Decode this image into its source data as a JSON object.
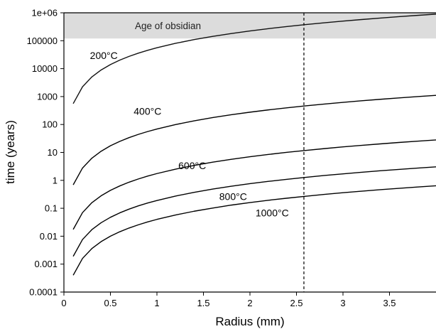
{
  "chart_data": {
    "type": "line",
    "title": "",
    "xlabel": "Radius (mm)",
    "ylabel": "time (years)",
    "xlim": [
      0,
      4
    ],
    "ylim": [
      0.0001,
      1000000
    ],
    "y_scale": "log",
    "grid": false,
    "legend": "none",
    "x_ticks": [
      {
        "value": 0,
        "label": "0"
      },
      {
        "value": 0.5,
        "label": "0.5"
      },
      {
        "value": 1,
        "label": "1"
      },
      {
        "value": 1.5,
        "label": "1.5"
      },
      {
        "value": 2,
        "label": "2"
      },
      {
        "value": 2.5,
        "label": "2.5"
      },
      {
        "value": 3,
        "label": "3"
      },
      {
        "value": 3.5,
        "label": "3.5"
      }
    ],
    "y_ticks": [
      {
        "value": 0.0001,
        "label": "0.0001"
      },
      {
        "value": 0.001,
        "label": "0.001"
      },
      {
        "value": 0.01,
        "label": "0.01"
      },
      {
        "value": 0.1,
        "label": "0.1"
      },
      {
        "value": 1,
        "label": "1"
      },
      {
        "value": 10,
        "label": "10"
      },
      {
        "value": 100,
        "label": "100"
      },
      {
        "value": 1000,
        "label": "1000"
      },
      {
        "value": 10000,
        "label": "10000"
      },
      {
        "value": 100000,
        "label": "100000"
      },
      {
        "value": 1000000,
        "label": "1e+06"
      }
    ],
    "x": [
      0.1,
      0.2,
      0.3,
      0.4,
      0.5,
      0.6,
      0.7,
      0.8,
      0.9,
      1.0,
      1.2,
      1.4,
      1.6,
      1.8,
      2.0,
      2.2,
      2.4,
      2.6,
      2.8,
      3.0,
      3.2,
      3.4,
      3.6,
      3.8,
      4.0
    ],
    "series": [
      {
        "name": "200°C",
        "values": [
          560,
          2240,
          5040,
          8960,
          14000,
          20160,
          27440,
          35840,
          45360,
          56000,
          80640,
          109760,
          143360,
          181440,
          224000,
          271040,
          322560,
          378560,
          439040,
          504000,
          573440,
          647360,
          725760,
          808640,
          896000
        ]
      },
      {
        "name": "400°C",
        "values": [
          0.69,
          2.76,
          6.21,
          11.0,
          17.3,
          24.8,
          33.8,
          44.2,
          55.9,
          69.0,
          99.4,
          135,
          177,
          224,
          276,
          334,
          397,
          466,
          541,
          621,
          707,
          798,
          894,
          996,
          1104
        ]
      },
      {
        "name": "600°C",
        "values": [
          0.0175,
          0.07,
          0.158,
          0.28,
          0.438,
          0.63,
          0.858,
          1.12,
          1.42,
          1.75,
          2.52,
          3.43,
          4.48,
          5.67,
          7.0,
          8.47,
          10.1,
          11.8,
          13.7,
          15.8,
          17.9,
          20.2,
          22.7,
          25.3,
          28.0
        ]
      },
      {
        "name": "800°C",
        "values": [
          0.0019,
          0.0076,
          0.0171,
          0.0304,
          0.0475,
          0.0684,
          0.0931,
          0.122,
          0.154,
          0.19,
          0.274,
          0.372,
          0.486,
          0.616,
          0.76,
          0.92,
          1.09,
          1.28,
          1.49,
          1.71,
          1.95,
          2.2,
          2.46,
          2.74,
          3.04
        ]
      },
      {
        "name": "1000°C",
        "values": [
          0.0004,
          0.0016,
          0.0036,
          0.0064,
          0.01,
          0.0144,
          0.0196,
          0.0256,
          0.0324,
          0.04,
          0.0576,
          0.0784,
          0.102,
          0.13,
          0.16,
          0.194,
          0.23,
          0.27,
          0.314,
          0.36,
          0.41,
          0.462,
          0.518,
          0.578,
          0.64
        ]
      }
    ],
    "curve_labels": [
      {
        "text": "200°C",
        "x": 0.28,
        "y": 22000
      },
      {
        "text": "400°C",
        "x": 0.75,
        "y": 220
      },
      {
        "text": "600°C",
        "x": 1.23,
        "y": 2.5
      },
      {
        "text": "800°C",
        "x": 1.67,
        "y": 0.2
      },
      {
        "text": "1000°C",
        "x": 2.06,
        "y": 0.052
      }
    ],
    "shaded_band": {
      "label": "Age of obsidian",
      "y_from": 120000,
      "y_to": 1000000,
      "color": "#dcdcdc"
    },
    "reference_line": {
      "x": 2.58,
      "style": "dashed"
    }
  }
}
